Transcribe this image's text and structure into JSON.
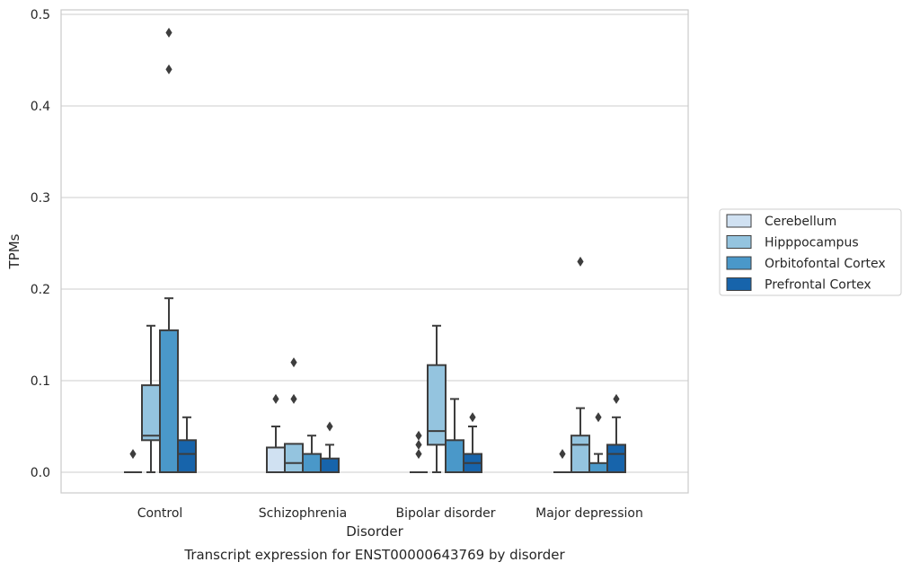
{
  "chart_data": {
    "type": "boxplot",
    "caption": "Transcript expression for ENST00000643769 by disorder",
    "xlabel": "Disorder",
    "ylabel": "TPMs",
    "ylim": [
      -0.023,
      0.505
    ],
    "yticks": [
      0.0,
      0.1,
      0.2,
      0.3,
      0.4,
      0.5
    ],
    "ytick_labels": [
      "0.0",
      "0.1",
      "0.2",
      "0.3",
      "0.4",
      "0.5"
    ],
    "grid": "horizontal",
    "legend_position": "right-center",
    "categories": [
      "Control",
      "Schizophrenia",
      "Bipolar disorder",
      "Major depression"
    ],
    "series": [
      {
        "name": "Cerebellum",
        "color": "#d0e1f2",
        "boxes": [
          {
            "q1": 0.0,
            "median": 0.0,
            "q3": 0.0,
            "whisker_low": 0.0,
            "whisker_high": 0.0,
            "outliers": [
              0.02
            ]
          },
          {
            "q1": 0.0,
            "median": 0.0,
            "q3": 0.027,
            "whisker_low": 0.0,
            "whisker_high": 0.05,
            "outliers": [
              0.08
            ]
          },
          {
            "q1": 0.0,
            "median": 0.0,
            "q3": 0.0,
            "whisker_low": 0.0,
            "whisker_high": 0.0,
            "outliers": [
              0.02,
              0.03,
              0.04
            ]
          },
          {
            "q1": 0.0,
            "median": 0.0,
            "q3": 0.0,
            "whisker_low": 0.0,
            "whisker_high": 0.0,
            "outliers": [
              0.02
            ]
          }
        ]
      },
      {
        "name": "Hipppocampus",
        "color": "#94c4df",
        "boxes": [
          {
            "q1": 0.035,
            "median": 0.04,
            "q3": 0.095,
            "whisker_low": 0.0,
            "whisker_high": 0.16,
            "outliers": []
          },
          {
            "q1": 0.0,
            "median": 0.01,
            "q3": 0.031,
            "whisker_low": 0.0,
            "whisker_high": 0.031,
            "outliers": [
              0.08,
              0.12
            ]
          },
          {
            "q1": 0.03,
            "median": 0.045,
            "q3": 0.117,
            "whisker_low": 0.0,
            "whisker_high": 0.16,
            "outliers": []
          },
          {
            "q1": 0.0,
            "median": 0.03,
            "q3": 0.04,
            "whisker_low": 0.0,
            "whisker_high": 0.07,
            "outliers": [
              0.23
            ]
          }
        ]
      },
      {
        "name": "Orbitofontal Cortex",
        "color": "#4a98c9",
        "boxes": [
          {
            "q1": 0.0,
            "median": 0.0,
            "q3": 0.155,
            "whisker_low": 0.0,
            "whisker_high": 0.19,
            "outliers": [
              0.44,
              0.48
            ]
          },
          {
            "q1": 0.0,
            "median": 0.0,
            "q3": 0.02,
            "whisker_low": 0.0,
            "whisker_high": 0.04,
            "outliers": []
          },
          {
            "q1": 0.0,
            "median": 0.0,
            "q3": 0.035,
            "whisker_low": 0.0,
            "whisker_high": 0.08,
            "outliers": []
          },
          {
            "q1": 0.0,
            "median": 0.0,
            "q3": 0.01,
            "whisker_low": 0.0,
            "whisker_high": 0.02,
            "outliers": [
              0.06
            ]
          }
        ]
      },
      {
        "name": "Prefrontal Cortex",
        "color": "#1764ab",
        "boxes": [
          {
            "q1": 0.0,
            "median": 0.02,
            "q3": 0.035,
            "whisker_low": 0.0,
            "whisker_high": 0.06,
            "outliers": []
          },
          {
            "q1": 0.0,
            "median": 0.0,
            "q3": 0.015,
            "whisker_low": 0.0,
            "whisker_high": 0.03,
            "outliers": [
              0.05
            ]
          },
          {
            "q1": 0.0,
            "median": 0.01,
            "q3": 0.02,
            "whisker_low": 0.0,
            "whisker_high": 0.05,
            "outliers": [
              0.06
            ]
          },
          {
            "q1": 0.0,
            "median": 0.02,
            "q3": 0.03,
            "whisker_low": 0.0,
            "whisker_high": 0.06,
            "outliers": [
              0.08
            ]
          }
        ]
      }
    ]
  }
}
